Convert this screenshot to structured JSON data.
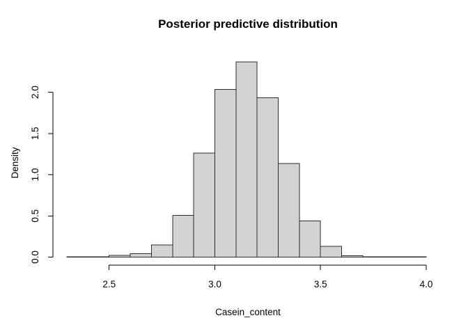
{
  "chart_data": {
    "type": "bar",
    "subtype": "histogram",
    "title": "Posterior predictive distribution",
    "xlabel": "Casein_content",
    "ylabel": "Density",
    "bin_width": 0.1,
    "bin_edges": [
      2.3,
      2.4,
      2.5,
      2.6,
      2.7,
      2.8,
      2.9,
      3.0,
      3.1,
      3.2,
      3.3,
      3.4,
      3.5,
      3.6,
      3.7,
      3.8,
      3.9,
      4.0
    ],
    "densities": [
      0.003,
      0.005,
      0.021,
      0.042,
      0.148,
      0.506,
      1.262,
      2.035,
      2.367,
      1.934,
      1.135,
      0.437,
      0.131,
      0.018,
      0.004,
      0.003,
      0.003
    ],
    "x_ticks": [
      2.5,
      3.0,
      3.5,
      4.0
    ],
    "x_tick_labels": [
      "2.5",
      "3.0",
      "3.5",
      "4.0"
    ],
    "y_ticks": [
      0.0,
      0.5,
      1.0,
      1.5,
      2.0
    ],
    "y_tick_labels": [
      "0.0",
      "0.5",
      "1.0",
      "1.5",
      "2.0"
    ],
    "xlim": [
      2.3,
      4.0
    ],
    "ylim": [
      0,
      2.37
    ],
    "grid": false,
    "legend": false,
    "bar_fill": "#d3d3d3",
    "bar_stroke": "#2e2e2e",
    "axis_color": "#000000",
    "background": "#ffffff"
  }
}
